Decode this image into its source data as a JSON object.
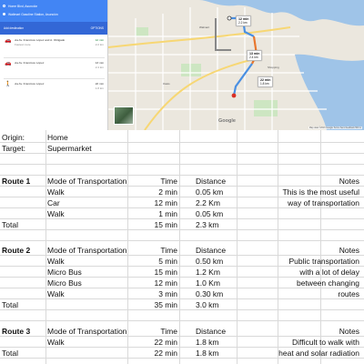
{
  "map": {
    "origin_field": "Home Blvd, Asunción",
    "destination_field": "Wallmart Gasoline Station, Asunción",
    "add_destination": "Add destination",
    "options_label": "OPTIONS",
    "routes": [
      {
        "mode": "car-icon",
        "title": "via Av. Francisco López and A. Obligado",
        "subtitle": "Fastest route",
        "time": "12 min",
        "dist": "2.2 km"
      },
      {
        "mode": "car-icon",
        "title": "via Av. Francisco López",
        "subtitle": "",
        "time": "13 min",
        "dist": "2.4 km"
      },
      {
        "mode": "walk-icon",
        "title": "via Av. Francisco López",
        "subtitle": "",
        "time": "22 min",
        "dist": "1.8 km"
      }
    ],
    "bubbles": [
      {
        "time": "12 min",
        "dist": "2.2 km"
      },
      {
        "time": "13 min",
        "dist": "2.4 km"
      },
      {
        "time": "22 min",
        "dist": "1.8 km"
      }
    ],
    "place_labels": [
      "Walmart",
      "Oasis",
      "Shopping"
    ],
    "footer": "Map data ©2016 Google  Terms  Send feedback  500 m",
    "logo": "Google",
    "colors": {
      "route_blue": "#4a90e2",
      "route_orange": "#e8772e",
      "route_grey": "#888888",
      "water": "#9fc4e8",
      "park": "#cde6c2"
    }
  },
  "sheet": {
    "origin_label": "Origin:",
    "origin_value": "Home",
    "target_label": "Target:",
    "target_value": "Supermarket",
    "routes": [
      {
        "name": "Route 1",
        "header": {
          "mode": "Mode of Transportation",
          "time": "Time",
          "distance": "Distance",
          "notes": "Notes"
        },
        "legs": [
          {
            "mode": "Walk",
            "time": "2 min",
            "distance": "0.05 km"
          },
          {
            "mode": "Car",
            "time": "12 min",
            "distance": "2.2 Km"
          },
          {
            "mode": "Walk",
            "time": "1 min",
            "distance": "0.05 km"
          }
        ],
        "notes": [
          "This is the most useful",
          "way of transportation"
        ],
        "total_label": "Total",
        "total_time": "15 min",
        "total_distance": "2.3 km"
      },
      {
        "name": "Route 2",
        "header": {
          "mode": "Mode of Transportation",
          "time": "Time",
          "distance": "Distance",
          "notes": "Notes"
        },
        "legs": [
          {
            "mode": "Walk",
            "time": "5 min",
            "distance": "0.50 km"
          },
          {
            "mode": "Micro Bus",
            "time": "15 min",
            "distance": "1.2 Km"
          },
          {
            "mode": "Micro Bus",
            "time": "12 min",
            "distance": "1.0 Km"
          },
          {
            "mode": "Walk",
            "time": "3 min",
            "distance": "0.30 km"
          }
        ],
        "notes": [
          "Public transportation",
          "with a lot of delay",
          "between changing",
          "routes"
        ],
        "total_label": "Total",
        "total_time": "35 min",
        "total_distance": "3.0 km"
      },
      {
        "name": "Route 3",
        "header": {
          "mode": "Mode of Transportation",
          "time": "Time",
          "distance": "Distance",
          "notes": "Notes"
        },
        "legs": [
          {
            "mode": "Walk",
            "time": "22 min",
            "distance": "1.8 km"
          }
        ],
        "notes": [
          "Difficult to walk with",
          "heat and solar radiation"
        ],
        "total_label": "Total",
        "total_time": "22 min",
        "total_distance": "1.8 km"
      }
    ]
  }
}
